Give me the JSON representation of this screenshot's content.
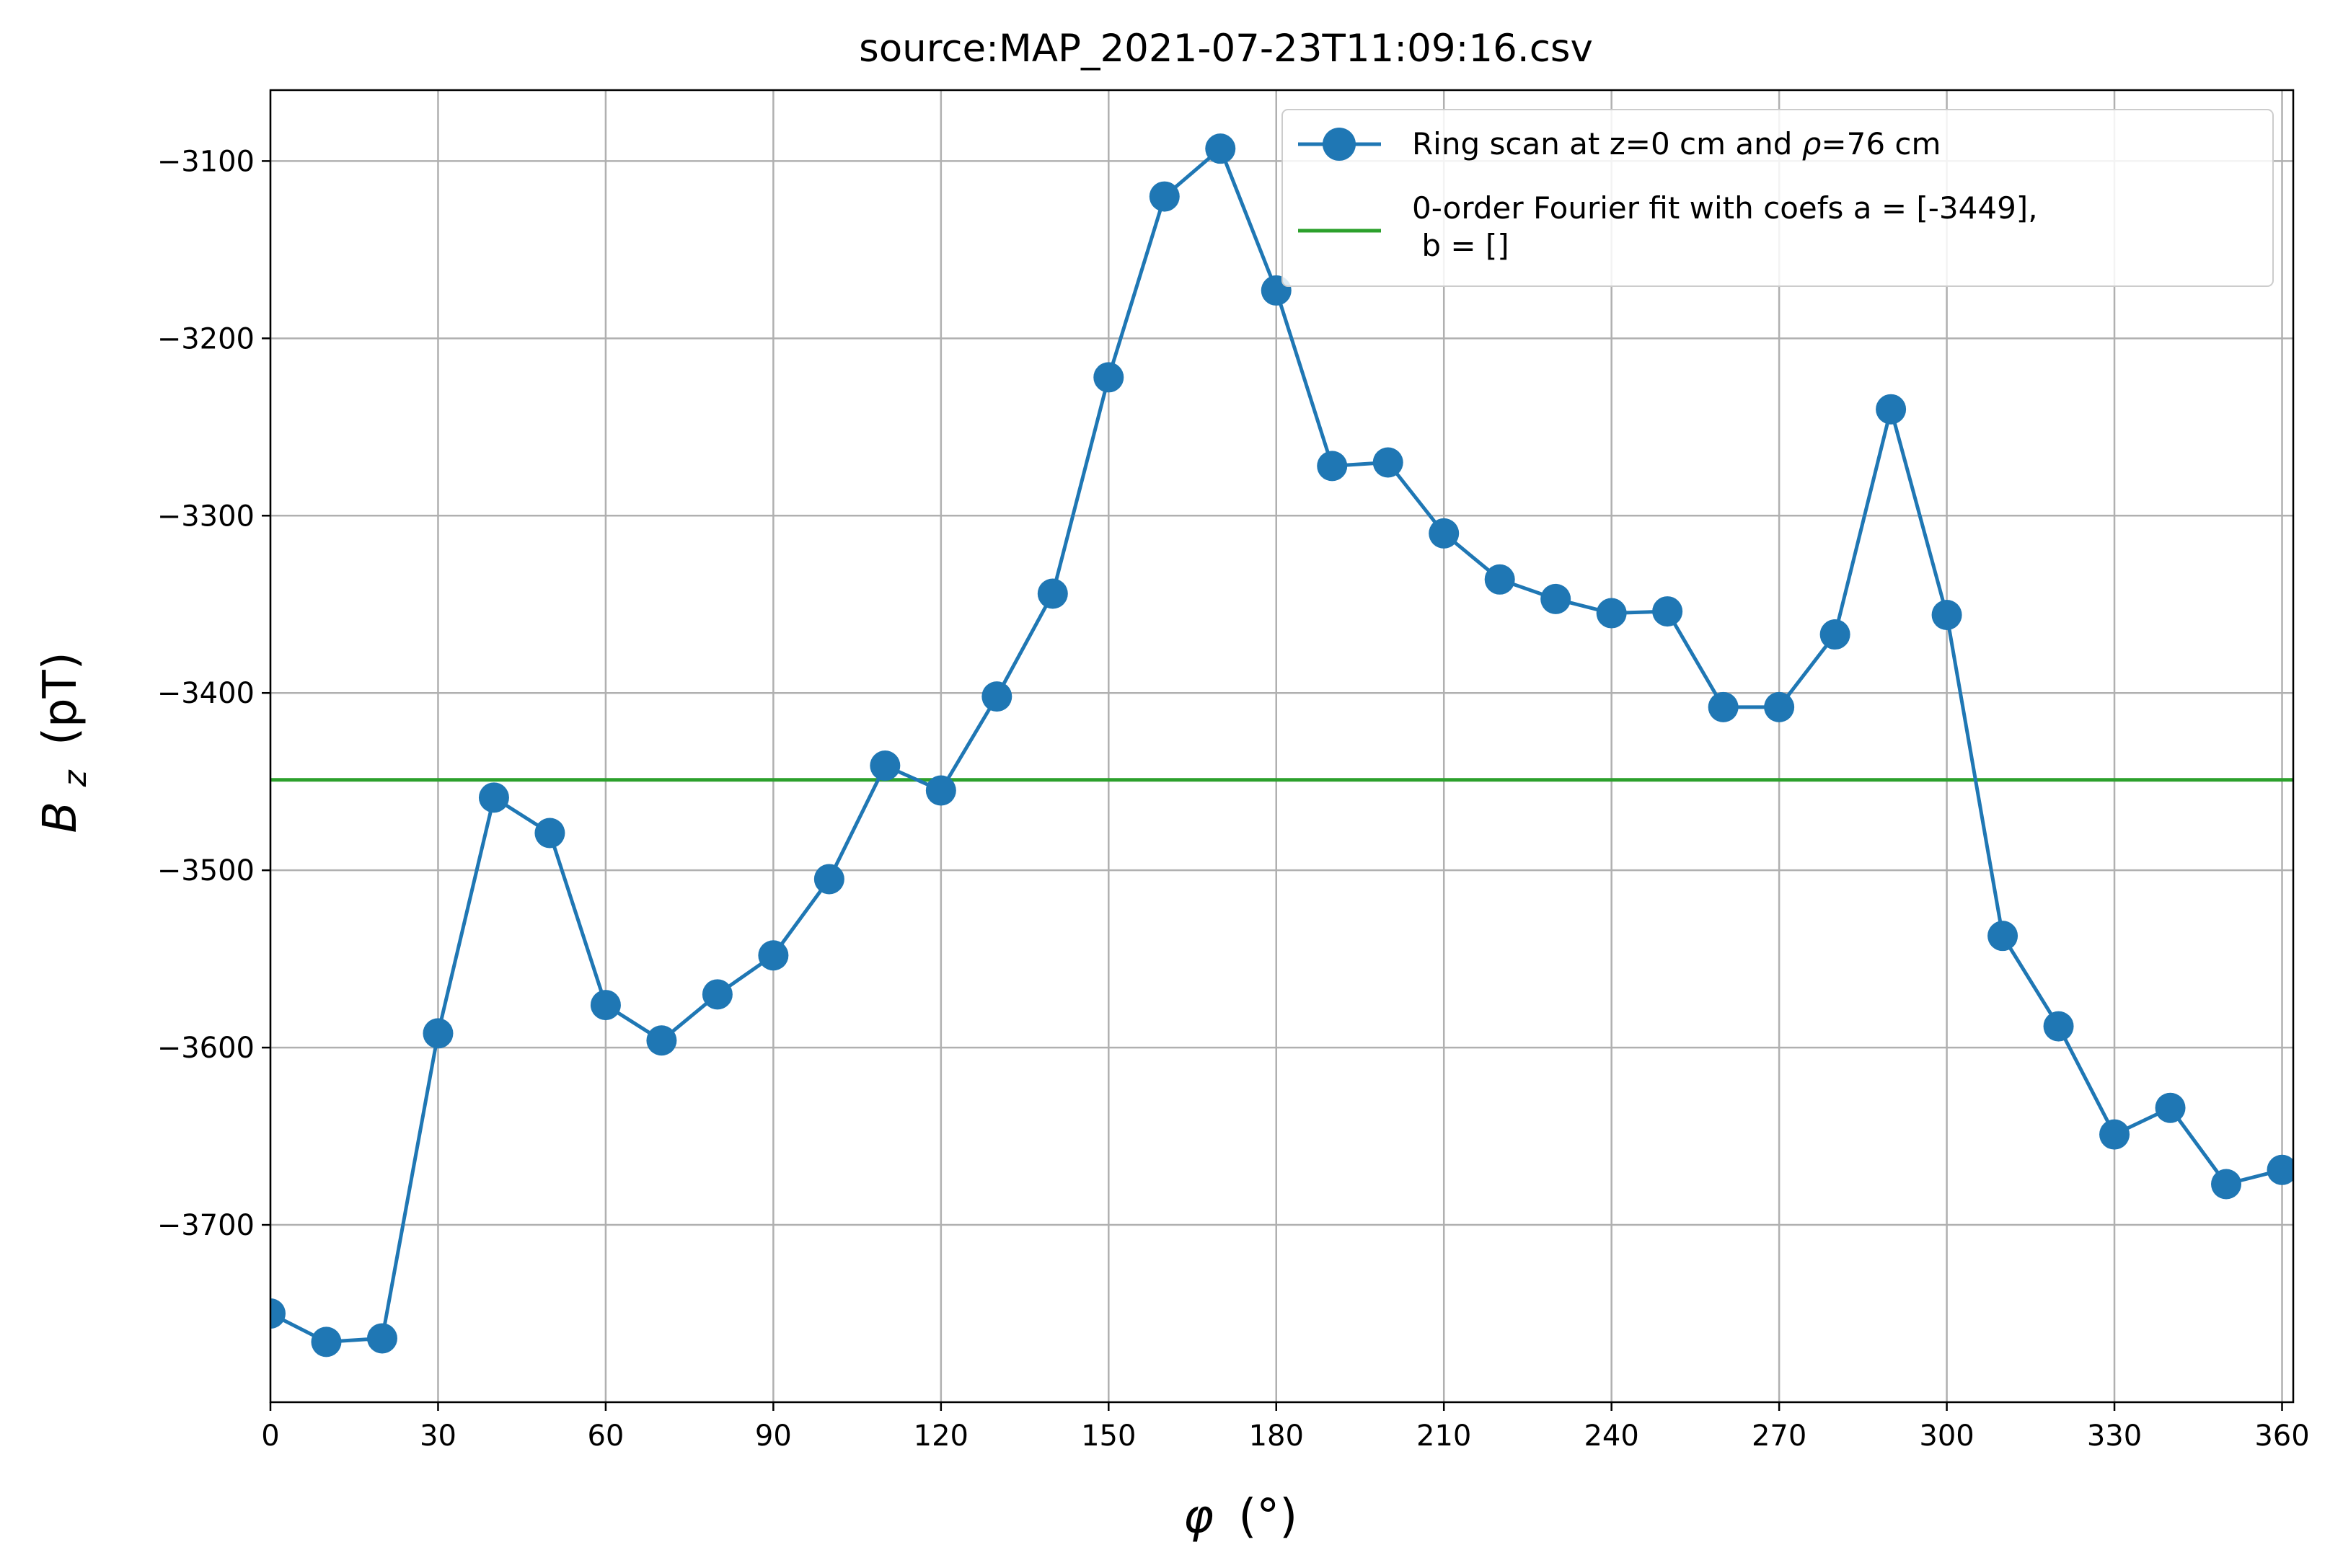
{
  "chart_data": {
    "type": "line",
    "title": "source:MAP_2021-07-23T11:09:16.csv",
    "xlabel_symbol": "φ",
    "xlabel_unit": "(°)",
    "ylabel_symbol": "B",
    "ylabel_subscript": "z",
    "ylabel_unit": "(pT)",
    "xlim": [
      0,
      362
    ],
    "ylim": [
      -3800,
      -3060
    ],
    "xticks": [
      0,
      30,
      60,
      90,
      120,
      150,
      180,
      210,
      240,
      270,
      300,
      330,
      360
    ],
    "yticks": [
      -3700,
      -3600,
      -3500,
      -3400,
      -3300,
      -3200,
      -3100
    ],
    "grid": true,
    "legend_position": "top-right",
    "series": [
      {
        "name_prefix": "Ring scan at z=0 cm and ",
        "name_symbol": "ρ",
        "name_suffix": "=76 cm",
        "kind": "line-markers",
        "color": "#1f77b4",
        "x": [
          0,
          10,
          20,
          30,
          40,
          50,
          60,
          70,
          80,
          90,
          100,
          110,
          120,
          130,
          140,
          150,
          160,
          170,
          180,
          190,
          200,
          210,
          220,
          230,
          240,
          250,
          260,
          270,
          280,
          290,
          300,
          310,
          320,
          330,
          340,
          350,
          360
        ],
        "y": [
          -3750,
          -3766,
          -3764,
          -3592,
          -3459,
          -3479,
          -3576,
          -3596,
          -3570,
          -3548,
          -3505,
          -3441,
          -3455,
          -3402,
          -3344,
          -3222,
          -3120,
          -3093,
          -3173,
          -3272,
          -3270,
          -3310,
          -3336,
          -3347,
          -3355,
          -3354,
          -3408,
          -3408,
          -3367,
          -3240,
          -3356,
          -3537,
          -3588,
          -3649,
          -3634,
          -3677,
          -3669
        ]
      },
      {
        "name_line1": "0-order Fourier fit with coefs a = [-3449],",
        "name_line2": " b = []",
        "kind": "hline",
        "color": "#2ca02c",
        "y": -3449
      }
    ]
  }
}
